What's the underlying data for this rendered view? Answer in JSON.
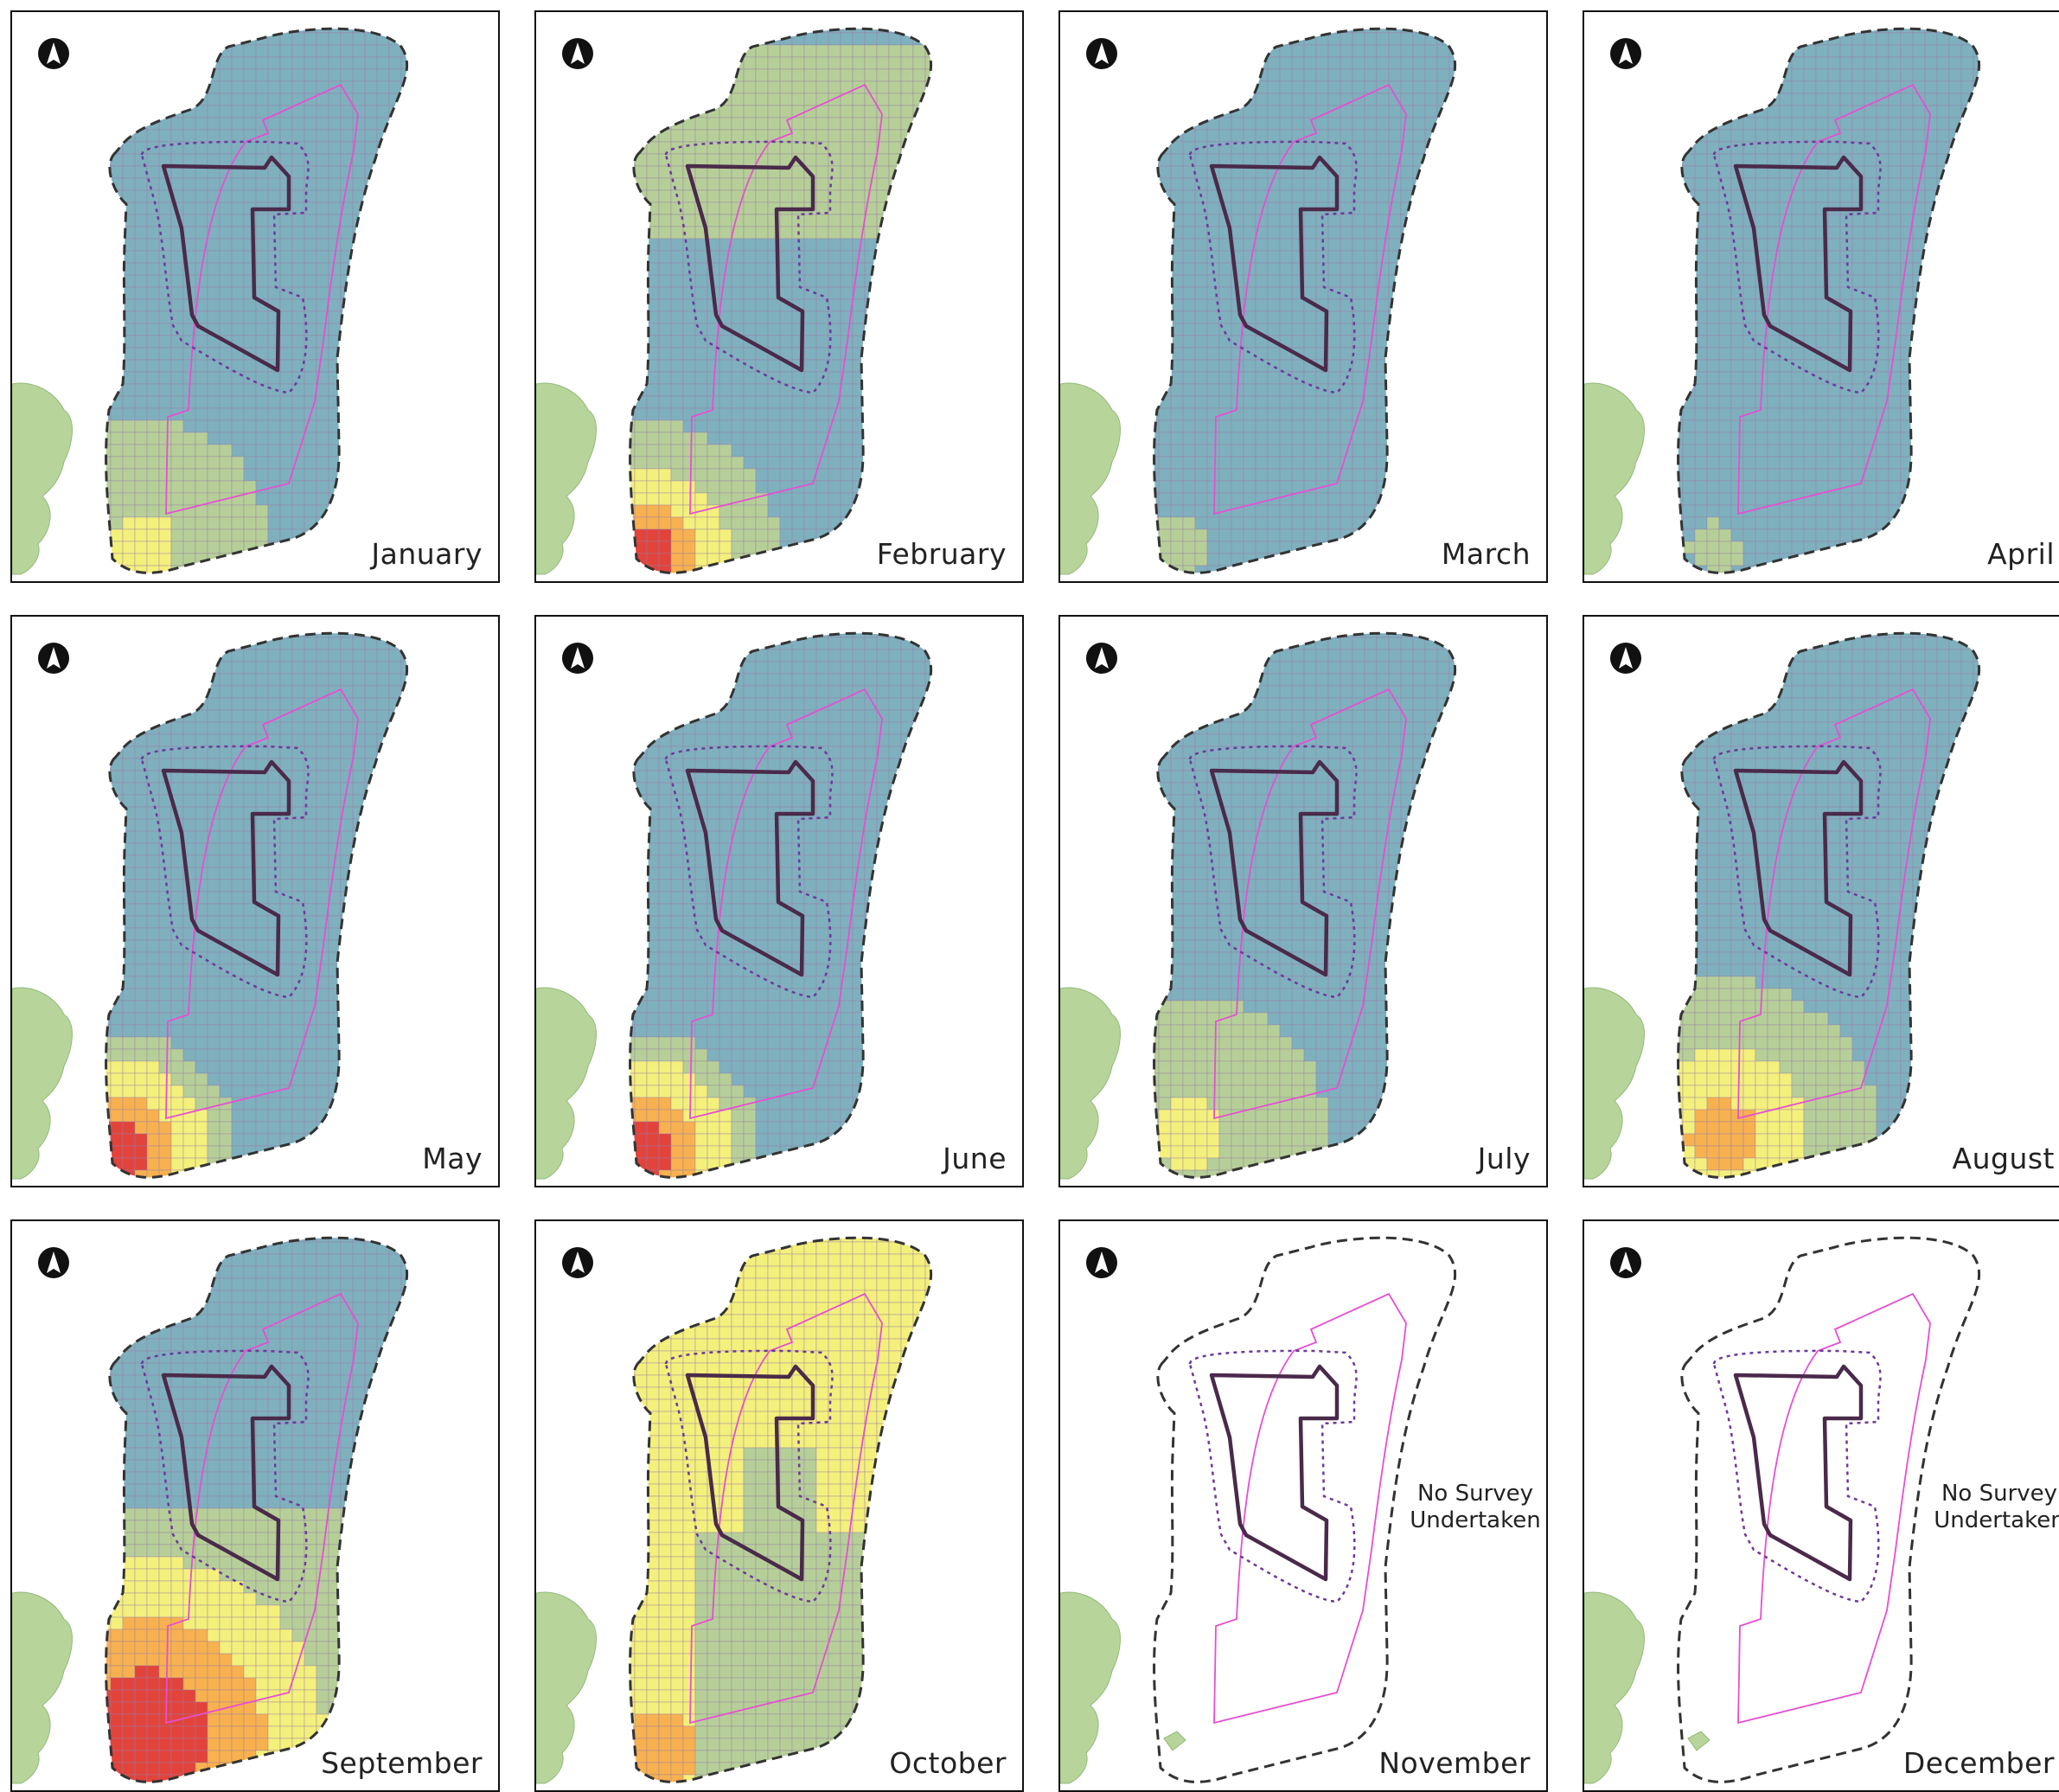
{
  "panels": [
    {
      "month": "January",
      "surveyed": true,
      "heat": "jan"
    },
    {
      "month": "February",
      "surveyed": true,
      "heat": "feb"
    },
    {
      "month": "March",
      "surveyed": true,
      "heat": "mar"
    },
    {
      "month": "April",
      "surveyed": true,
      "heat": "apr"
    },
    {
      "month": "May",
      "surveyed": true,
      "heat": "may"
    },
    {
      "month": "June",
      "surveyed": true,
      "heat": "jun"
    },
    {
      "month": "July",
      "surveyed": true,
      "heat": "jul"
    },
    {
      "month": "August",
      "surveyed": true,
      "heat": "aug"
    },
    {
      "month": "September",
      "surveyed": true,
      "heat": "sep"
    },
    {
      "month": "October",
      "surveyed": true,
      "heat": "oct"
    },
    {
      "month": "November",
      "surveyed": false,
      "heat": "none"
    },
    {
      "month": "December",
      "surveyed": false,
      "heat": "none"
    }
  ],
  "no_survey_text": [
    "No Survey",
    "Undertaken"
  ],
  "colors": {
    "low": "#7fb0be",
    "low_mid": "#b6cf98",
    "mid": "#f4f07c",
    "high": "#f8b14f",
    "very_high": "#e2433a",
    "land": "#b7d59a",
    "grid_line": "#9a7ea6",
    "site_boundary": "#4a2a4a",
    "buffer_dotted": "#6b3a9a",
    "cable_corridor": "#e64fd2",
    "survey_area_dashed": "#333333"
  },
  "icons": {
    "north_arrow": "north-arrow-icon"
  }
}
